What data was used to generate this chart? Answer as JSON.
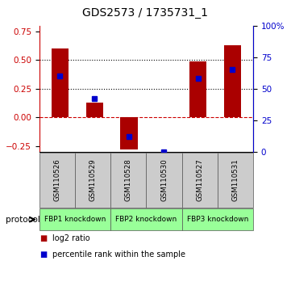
{
  "title": "GDS2573 / 1735731_1",
  "samples": [
    "GSM110526",
    "GSM110529",
    "GSM110528",
    "GSM110530",
    "GSM110527",
    "GSM110531"
  ],
  "log2_ratio": [
    0.6,
    0.13,
    -0.28,
    0.0,
    0.49,
    0.63
  ],
  "percentile_rank": [
    60,
    42,
    12,
    0,
    58.5,
    65.5
  ],
  "group_defs": [
    {
      "start": 0,
      "end": 2,
      "label": "FBP1 knockdown"
    },
    {
      "start": 2,
      "end": 4,
      "label": "FBP2 knockdown"
    },
    {
      "start": 4,
      "end": 6,
      "label": "FBP3 knockdown"
    }
  ],
  "bar_color": "#aa0000",
  "dot_color": "#0000cc",
  "ylim_left": [
    -0.3,
    0.8
  ],
  "ylim_right": [
    0,
    100
  ],
  "yticks_left": [
    -0.25,
    0.0,
    0.25,
    0.5,
    0.75
  ],
  "yticks_right": [
    0,
    25,
    50,
    75,
    100
  ],
  "hlines": [
    0.25,
    0.5
  ],
  "bg_color": "#ffffff",
  "bar_width": 0.5,
  "sample_box_color": "#cccccc",
  "group_box_color": "#99ff99",
  "legend_items": [
    {
      "color": "#aa0000",
      "label": "log2 ratio"
    },
    {
      "color": "#0000cc",
      "label": "percentile rank within the sample"
    }
  ]
}
